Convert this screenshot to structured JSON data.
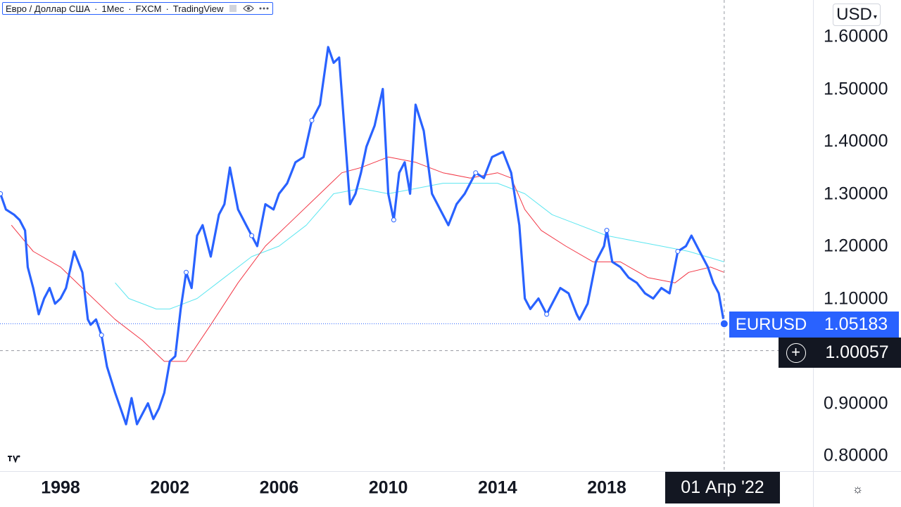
{
  "legend": {
    "symbol": "Евро / Доллар США",
    "interval": "1Мес",
    "exchange": "FXCM",
    "source": "TradingView",
    "sep": "·",
    "eye_icon": "eye-icon",
    "more_icon": "more-icon"
  },
  "axis": {
    "currency": "USD",
    "price_ticks": [
      "1.60000",
      "1.50000",
      "1.40000",
      "1.30000",
      "1.20000",
      "1.10000",
      "0.90000",
      "0.80000"
    ],
    "time_ticks": [
      "1998",
      "2002",
      "2006",
      "2010",
      "2014",
      "2018"
    ]
  },
  "last_price": {
    "series_label": "EURUSD",
    "value": "1.05183"
  },
  "crosshair": {
    "price": "1.00057",
    "time": "01 Апр '22",
    "plus_icon": "plus-circle-icon"
  },
  "colors": {
    "main_line": "#2962ff",
    "ma_fast": "#f23645",
    "ma_slow": "#5ce6f0",
    "crosshair_bg": "#131722"
  },
  "chart_data": {
    "type": "line",
    "symbol": "EURUSD",
    "x_unit": "year",
    "ylim": [
      0.78,
      1.66
    ],
    "xlim": [
      1994.4,
      2022.8
    ],
    "y_scale": "linear",
    "grid": false,
    "crosshair_price_value": 1.00057,
    "last_value": 1.05183,
    "series": [
      {
        "name": "EURUSD",
        "x": [
          1994.5,
          1994.7,
          1995.0,
          1995.2,
          1995.5,
          1995.8,
          1996.0,
          1996.3,
          1996.5,
          1996.7,
          1996.8,
          1997.0,
          1997.2,
          1997.4,
          1997.6,
          1997.8,
          1998.0,
          1998.2,
          1998.5,
          1998.8,
          1999.0,
          1999.1,
          1999.3,
          1999.5,
          1999.7,
          2000.0,
          2000.2,
          2000.4,
          2000.6,
          2000.8,
          2001.0,
          2001.2,
          2001.4,
          2001.6,
          2001.8,
          2002.0,
          2002.2,
          2002.4,
          2002.6,
          2002.8,
          2003.0,
          2003.2,
          2003.5,
          2003.8,
          2004.0,
          2004.2,
          2004.5,
          2004.8,
          2005.0,
          2005.2,
          2005.5,
          2005.8,
          2006.0,
          2006.3,
          2006.6,
          2006.9,
          2007.2,
          2007.5,
          2007.8,
          2008.0,
          2008.2,
          2008.4,
          2008.6,
          2008.8,
          2009.0,
          2009.2,
          2009.5,
          2009.8,
          2010.0,
          2010.2,
          2010.4,
          2010.6,
          2010.8,
          2011.0,
          2011.3,
          2011.6,
          2011.9,
          2012.2,
          2012.5,
          2012.8,
          2013.2,
          2013.5,
          2013.8,
          2014.2,
          2014.5,
          2014.8,
          2015.0,
          2015.2,
          2015.5,
          2015.8,
          2016.0,
          2016.3,
          2016.6,
          2016.9,
          2017.0,
          2017.3,
          2017.6,
          2017.9,
          2018.0,
          2018.2,
          2018.5,
          2018.8,
          2019.1,
          2019.4,
          2019.7,
          2020.0,
          2020.3,
          2020.6,
          2020.9,
          2021.1,
          2021.4,
          2021.7,
          2021.9,
          2022.1,
          2022.3
        ],
        "values": [
          1.34,
          1.33,
          1.3,
          1.31,
          1.29,
          1.3,
          1.27,
          1.26,
          1.25,
          1.23,
          1.16,
          1.12,
          1.07,
          1.1,
          1.12,
          1.09,
          1.1,
          1.12,
          1.19,
          1.15,
          1.06,
          1.05,
          1.06,
          1.03,
          0.97,
          0.92,
          0.89,
          0.86,
          0.91,
          0.86,
          0.88,
          0.9,
          0.87,
          0.89,
          0.92,
          0.98,
          0.99,
          1.08,
          1.15,
          1.12,
          1.22,
          1.24,
          1.18,
          1.26,
          1.28,
          1.35,
          1.27,
          1.24,
          1.22,
          1.2,
          1.28,
          1.27,
          1.3,
          1.32,
          1.36,
          1.37,
          1.44,
          1.47,
          1.58,
          1.55,
          1.56,
          1.42,
          1.28,
          1.3,
          1.34,
          1.39,
          1.43,
          1.5,
          1.3,
          1.25,
          1.34,
          1.36,
          1.3,
          1.47,
          1.42,
          1.3,
          1.27,
          1.24,
          1.28,
          1.3,
          1.34,
          1.33,
          1.37,
          1.38,
          1.34,
          1.24,
          1.1,
          1.08,
          1.1,
          1.07,
          1.09,
          1.12,
          1.11,
          1.07,
          1.06,
          1.09,
          1.17,
          1.2,
          1.23,
          1.17,
          1.16,
          1.14,
          1.13,
          1.11,
          1.1,
          1.12,
          1.11,
          1.19,
          1.2,
          1.22,
          1.19,
          1.16,
          1.13,
          1.11,
          1.05183
        ]
      },
      {
        "name": "",
        "x": [
          1996.2,
          1997.0,
          1998.0,
          1999.0,
          2000.0,
          2001.0,
          2001.8,
          2002.6,
          2003.5,
          2004.5,
          2005.5,
          2006.5,
          2007.5,
          2008.3,
          2009.0,
          2010.0,
          2011.0,
          2012.0,
          2013.0,
          2014.0,
          2014.5,
          2015.0,
          2015.6,
          2016.5,
          2017.5,
          2018.5,
          2019.5,
          2020.5,
          2021.0,
          2021.8,
          2022.3
        ],
        "values": [
          1.24,
          1.19,
          1.16,
          1.11,
          1.06,
          1.02,
          0.98,
          0.98,
          1.05,
          1.13,
          1.2,
          1.25,
          1.3,
          1.34,
          1.35,
          1.37,
          1.36,
          1.34,
          1.33,
          1.34,
          1.33,
          1.27,
          1.23,
          1.2,
          1.17,
          1.17,
          1.14,
          1.13,
          1.15,
          1.16,
          1.15
        ]
      },
      {
        "name": "",
        "x": [
          2000.0,
          2000.5,
          2001.0,
          2001.5,
          2002.0,
          2003.0,
          2004.0,
          2005.0,
          2006.0,
          2007.0,
          2008.0,
          2009.0,
          2010.0,
          2011.0,
          2012.0,
          2013.0,
          2014.0,
          2015.0,
          2016.0,
          2017.0,
          2018.0,
          2019.0,
          2020.0,
          2021.0,
          2022.3
        ],
        "values": [
          1.13,
          1.1,
          1.09,
          1.08,
          1.08,
          1.1,
          1.14,
          1.18,
          1.2,
          1.24,
          1.3,
          1.31,
          1.3,
          1.31,
          1.32,
          1.32,
          1.32,
          1.3,
          1.26,
          1.24,
          1.22,
          1.21,
          1.2,
          1.19,
          1.17
        ]
      }
    ]
  }
}
